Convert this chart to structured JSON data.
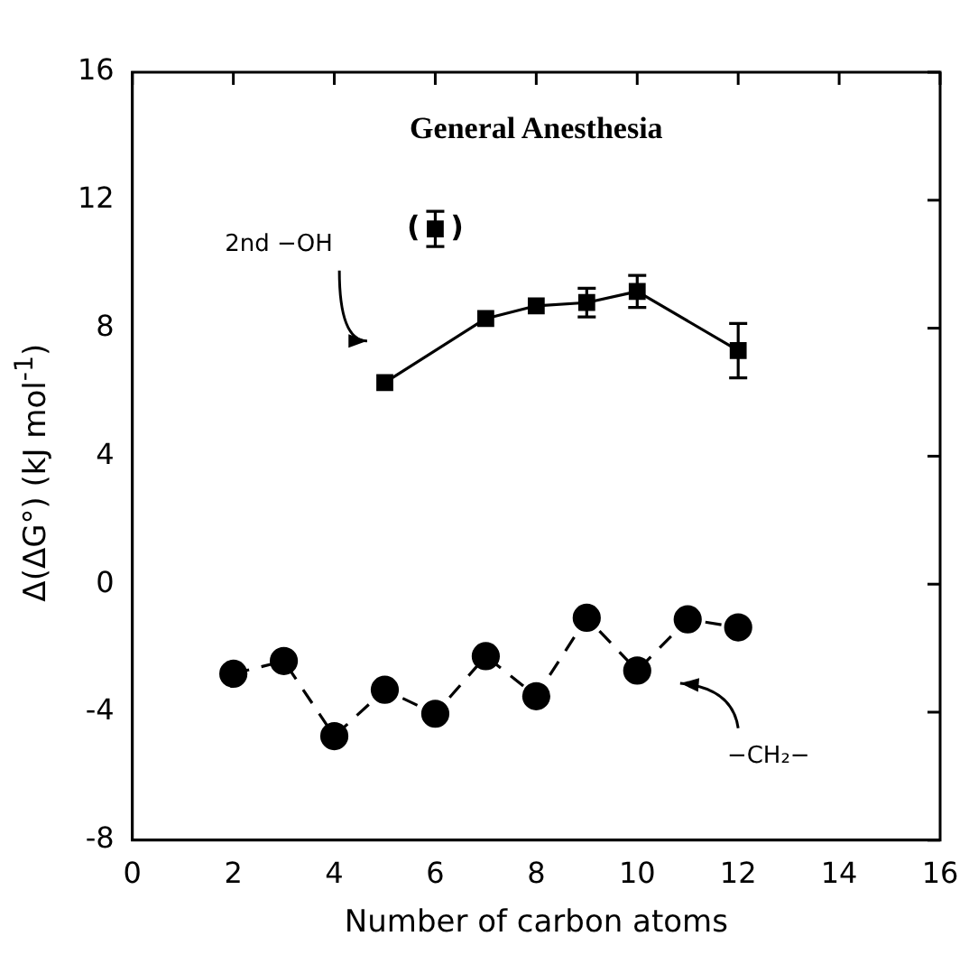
{
  "chart_data": {
    "type": "line",
    "title": "General Anesthesia",
    "xlabel": "Number of carbon atoms",
    "ylabel": "Δ(ΔG°) (kJ mol$^{-1}$)",
    "xlim": [
      0,
      16
    ],
    "xticks": [
      0,
      2,
      4,
      6,
      8,
      10,
      12,
      14,
      16
    ],
    "ylim": [
      -8,
      16
    ],
    "yticks": [
      -8,
      -4,
      0,
      4,
      8,
      12,
      16
    ],
    "grid": false,
    "legend": false,
    "series": [
      {
        "color": "#000000",
        "marker": "square",
        "line_style": "solid",
        "x": [
          5,
          7,
          8,
          9,
          10,
          12
        ],
        "values": [
          6.3,
          8.3,
          8.7,
          8.8,
          9.15,
          7.3
        ],
        "errors": [
          null,
          null,
          null,
          0.45,
          0.5,
          0.85
        ]
      },
      {
        "type": "scatter",
        "color": "#000000",
        "marker": "square",
        "x": [
          6
        ],
        "values": [
          11.1
        ],
        "errors": [
          0.55
        ]
      },
      {
        "color": "#000000",
        "marker": "circle",
        "line_style": "dashed",
        "x": [
          2,
          3,
          4,
          5,
          6,
          7,
          8,
          9,
          10,
          11,
          12
        ],
        "values": [
          -2.8,
          -2.4,
          -4.75,
          -3.3,
          -4.05,
          -2.25,
          -3.5,
          -1.05,
          -2.7,
          -1.1,
          -1.35
        ]
      }
    ],
    "annotations": [
      {
        "text": "(   )",
        "x": 6,
        "y": 11.1
      },
      "2nd −OH",
      "−CH₂−"
    ]
  }
}
